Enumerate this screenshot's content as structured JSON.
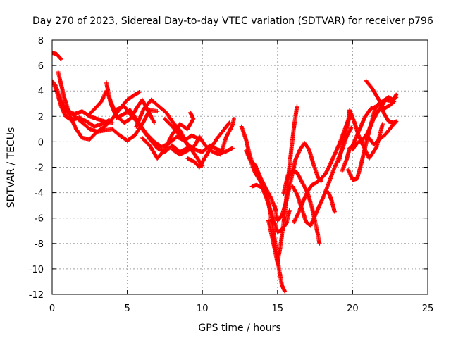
{
  "chart_data": {
    "type": "scatter",
    "title": "Day 270 of 2023, Sidereal Day-to-day VTEC variation (SDTVAR) for receiver p796",
    "xlabel": "GPS time / hours",
    "ylabel": "SDTVAR / TECUs",
    "xlim": [
      0,
      25
    ],
    "ylim": [
      -12,
      8
    ],
    "xticks": [
      0,
      5,
      10,
      15,
      20,
      25
    ],
    "yticks": [
      -12,
      -10,
      -8,
      -6,
      -4,
      -2,
      0,
      2,
      4,
      6,
      8
    ],
    "grid": true,
    "marker": "+",
    "series": [
      {
        "name": "SDTVAR",
        "color": "#ff0000",
        "tracks": [
          [
            [
              0.0,
              7.0
            ],
            [
              0.3,
              6.9
            ],
            [
              0.6,
              6.5
            ]
          ],
          [
            [
              0.0,
              4.8
            ],
            [
              0.3,
              4.0
            ],
            [
              0.6,
              2.8
            ],
            [
              0.9,
              2.0
            ],
            [
              1.3,
              1.7
            ],
            [
              1.8,
              1.9
            ],
            [
              2.3,
              1.6
            ],
            [
              2.8,
              1.2
            ],
            [
              3.3,
              1.4
            ],
            [
              3.8,
              1.7
            ]
          ],
          [
            [
              0.2,
              4.5
            ],
            [
              0.6,
              3.2
            ],
            [
              1.0,
              2.3
            ],
            [
              1.5,
              2.2
            ],
            [
              2.0,
              2.4
            ],
            [
              2.5,
              2.0
            ],
            [
              3.0,
              1.8
            ],
            [
              3.5,
              1.6
            ],
            [
              4.0,
              1.5
            ]
          ],
          [
            [
              0.4,
              5.5
            ],
            [
              0.8,
              3.5
            ],
            [
              1.2,
              2.0
            ],
            [
              1.6,
              1.0
            ],
            [
              2.0,
              0.3
            ],
            [
              2.5,
              0.2
            ],
            [
              3.0,
              0.8
            ],
            [
              3.5,
              1.2
            ],
            [
              4.0,
              1.8
            ],
            [
              4.5,
              2.6
            ],
            [
              5.0,
              3.3
            ],
            [
              5.5,
              3.7
            ],
            [
              5.8,
              3.9
            ]
          ],
          [
            [
              1.0,
              2.6
            ],
            [
              1.5,
              2.0
            ],
            [
              2.0,
              1.5
            ],
            [
              2.5,
              1.0
            ],
            [
              3.0,
              0.8
            ],
            [
              3.5,
              0.9
            ],
            [
              4.0,
              1.0
            ],
            [
              4.5,
              0.5
            ],
            [
              5.0,
              0.1
            ],
            [
              5.5,
              0.5
            ],
            [
              6.0,
              1.4
            ],
            [
              6.5,
              2.5
            ],
            [
              7.0,
              2.4
            ]
          ],
          [
            [
              2.5,
              2.2
            ],
            [
              3.0,
              2.8
            ],
            [
              3.3,
              3.2
            ],
            [
              3.6,
              4.0
            ],
            [
              3.9,
              3.2
            ],
            [
              4.3,
              2.0
            ],
            [
              4.8,
              1.5
            ],
            [
              5.2,
              1.8
            ],
            [
              5.7,
              2.8
            ],
            [
              6.0,
              3.3
            ],
            [
              6.4,
              2.4
            ],
            [
              6.8,
              1.5
            ]
          ],
          [
            [
              3.6,
              4.7
            ],
            [
              3.9,
              3.0
            ],
            [
              4.3,
              1.9
            ],
            [
              4.8,
              2.2
            ],
            [
              5.2,
              2.5
            ],
            [
              5.6,
              1.8
            ],
            [
              6.0,
              1.0
            ],
            [
              6.5,
              0.2
            ],
            [
              7.0,
              -0.5
            ],
            [
              7.5,
              -0.8
            ],
            [
              8.0,
              -0.3
            ],
            [
              8.5,
              -0.8
            ],
            [
              9.0,
              -0.5
            ]
          ],
          [
            [
              4.2,
              2.5
            ],
            [
              4.8,
              2.8
            ],
            [
              5.3,
              2.0
            ],
            [
              5.8,
              1.4
            ],
            [
              6.3,
              0.6
            ],
            [
              6.8,
              0.0
            ],
            [
              7.3,
              -0.4
            ],
            [
              7.8,
              -0.1
            ],
            [
              8.3,
              0.4
            ],
            [
              8.8,
              0.1
            ],
            [
              9.3,
              0.5
            ],
            [
              9.8,
              0.2
            ]
          ],
          [
            [
              5.6,
              1.2
            ],
            [
              6.1,
              2.6
            ],
            [
              6.6,
              3.3
            ],
            [
              7.1,
              2.8
            ],
            [
              7.6,
              2.3
            ],
            [
              8.0,
              1.6
            ],
            [
              8.5,
              0.9
            ],
            [
              9.0,
              -0.2
            ],
            [
              9.5,
              -1.0
            ],
            [
              10.0,
              -1.9
            ]
          ],
          [
            [
              6.0,
              0.3
            ],
            [
              6.5,
              -0.3
            ],
            [
              7.0,
              -1.3
            ],
            [
              7.5,
              -0.6
            ],
            [
              8.0,
              0.6
            ],
            [
              8.5,
              1.4
            ],
            [
              9.0,
              1.0
            ],
            [
              9.4,
              1.8
            ],
            [
              9.2,
              2.3
            ]
          ],
          [
            [
              7.5,
              1.8
            ],
            [
              8.0,
              1.2
            ],
            [
              8.5,
              0.5
            ],
            [
              9.0,
              -0.2
            ],
            [
              9.5,
              -0.6
            ],
            [
              10.0,
              -0.8
            ],
            [
              10.5,
              -0.3
            ],
            [
              11.0,
              -0.6
            ],
            [
              11.5,
              -0.8
            ],
            [
              12.0,
              -0.5
            ]
          ],
          [
            [
              8.0,
              -0.6
            ],
            [
              8.5,
              -1.0
            ],
            [
              9.0,
              -0.7
            ],
            [
              9.5,
              -0.3
            ],
            [
              9.8,
              0.4
            ],
            [
              10.2,
              -0.3
            ],
            [
              10.7,
              -0.8
            ],
            [
              11.2,
              -1.0
            ],
            [
              11.6,
              0.4
            ],
            [
              12.0,
              1.3
            ],
            [
              12.1,
              1.8
            ]
          ],
          [
            [
              9.0,
              -1.3
            ],
            [
              9.5,
              -1.6
            ],
            [
              9.8,
              -2.0
            ],
            [
              10.2,
              -1.2
            ],
            [
              10.6,
              -0.4
            ],
            [
              11.0,
              0.3
            ],
            [
              11.4,
              0.9
            ],
            [
              11.8,
              1.5
            ]
          ],
          [
            [
              12.6,
              1.2
            ],
            [
              12.9,
              0.2
            ],
            [
              13.1,
              -0.8
            ],
            [
              13.3,
              -1.6
            ],
            [
              13.5,
              -1.8
            ],
            [
              13.9,
              -2.9
            ],
            [
              14.2,
              -3.6
            ],
            [
              14.6,
              -4.5
            ],
            [
              14.9,
              -5.4
            ]
          ],
          [
            [
              12.9,
              -0.7
            ],
            [
              13.2,
              -1.5
            ],
            [
              13.5,
              -2.4
            ],
            [
              13.8,
              -3.0
            ],
            [
              14.1,
              -3.6
            ],
            [
              14.4,
              -4.8
            ],
            [
              14.7,
              -6.8
            ],
            [
              14.9,
              -8.4
            ],
            [
              15.1,
              -10.0
            ],
            [
              15.3,
              -11.3
            ],
            [
              15.5,
              -11.8
            ]
          ],
          [
            [
              13.3,
              -3.5
            ],
            [
              13.6,
              -3.4
            ],
            [
              14.0,
              -3.6
            ],
            [
              14.4,
              -4.9
            ],
            [
              14.7,
              -6.0
            ],
            [
              15.0,
              -7.1
            ],
            [
              15.3,
              -6.9
            ],
            [
              15.6,
              -6.4
            ],
            [
              15.8,
              -5.4
            ]
          ],
          [
            [
              14.4,
              -6.2
            ],
            [
              14.7,
              -7.8
            ],
            [
              15.0,
              -9.5
            ],
            [
              15.2,
              -8.2
            ],
            [
              15.5,
              -5.5
            ],
            [
              15.7,
              -3.0
            ],
            [
              15.9,
              -0.8
            ],
            [
              16.1,
              1.2
            ],
            [
              16.3,
              2.8
            ]
          ],
          [
            [
              14.8,
              -5.0
            ],
            [
              15.0,
              -6.2
            ],
            [
              15.3,
              -5.8
            ],
            [
              15.6,
              -4.6
            ],
            [
              15.9,
              -3.0
            ],
            [
              16.2,
              -1.4
            ],
            [
              16.5,
              -0.6
            ],
            [
              16.8,
              -0.1
            ],
            [
              17.1,
              -0.6
            ],
            [
              17.4,
              -1.8
            ],
            [
              17.7,
              -2.8
            ],
            [
              17.9,
              -3.1
            ]
          ],
          [
            [
              15.4,
              -4.1
            ],
            [
              15.7,
              -2.6
            ],
            [
              16.0,
              -2.3
            ],
            [
              16.3,
              -2.4
            ],
            [
              16.6,
              -3.1
            ],
            [
              17.0,
              -4.0
            ],
            [
              17.3,
              -5.2
            ],
            [
              17.6,
              -6.8
            ],
            [
              17.8,
              -8.0
            ]
          ],
          [
            [
              16.0,
              -3.5
            ],
            [
              16.3,
              -4.1
            ],
            [
              16.6,
              -5.2
            ],
            [
              16.9,
              -6.3
            ],
            [
              17.2,
              -6.6
            ],
            [
              17.5,
              -5.8
            ],
            [
              17.8,
              -5.0
            ],
            [
              18.1,
              -4.2
            ],
            [
              18.4,
              -3.3
            ],
            [
              18.7,
              -2.3
            ],
            [
              19.0,
              -1.5
            ],
            [
              19.3,
              -0.6
            ],
            [
              19.6,
              0.4
            ],
            [
              19.9,
              1.1
            ]
          ],
          [
            [
              16.1,
              -6.3
            ],
            [
              16.4,
              -5.6
            ],
            [
              16.7,
              -4.7
            ],
            [
              17.0,
              -3.9
            ],
            [
              17.3,
              -3.4
            ],
            [
              17.6,
              -3.2
            ],
            [
              17.9,
              -2.9
            ],
            [
              18.2,
              -2.5
            ],
            [
              18.5,
              -1.8
            ],
            [
              18.8,
              -1.0
            ],
            [
              19.1,
              -0.2
            ],
            [
              19.4,
              0.7
            ],
            [
              19.7,
              1.7
            ],
            [
              20.0,
              2.1
            ]
          ],
          [
            [
              18.4,
              -4.0
            ],
            [
              18.6,
              -4.6
            ],
            [
              18.8,
              -5.5
            ]
          ],
          [
            [
              19.1,
              -1.5
            ],
            [
              19.4,
              0.2
            ],
            [
              19.7,
              1.5
            ],
            [
              19.8,
              2.5
            ],
            [
              20.1,
              1.6
            ],
            [
              20.4,
              0.5
            ],
            [
              20.7,
              -0.3
            ],
            [
              21.1,
              -1.3
            ],
            [
              21.6,
              -0.4
            ],
            [
              22.0,
              1.4
            ]
          ],
          [
            [
              19.7,
              -2.2
            ],
            [
              20.0,
              -3.0
            ],
            [
              20.3,
              -2.9
            ],
            [
              20.6,
              -1.6
            ],
            [
              20.9,
              -0.1
            ],
            [
              21.2,
              1.3
            ],
            [
              21.5,
              2.6
            ],
            [
              21.8,
              3.1
            ],
            [
              22.1,
              2.2
            ],
            [
              22.4,
              1.6
            ],
            [
              22.7,
              1.5
            ],
            [
              22.9,
              1.6
            ]
          ],
          [
            [
              19.3,
              -2.3
            ],
            [
              19.6,
              -1.4
            ],
            [
              19.8,
              -0.5
            ],
            [
              20.0,
              -0.3
            ],
            [
              20.4,
              0.8
            ],
            [
              20.8,
              1.9
            ],
            [
              21.2,
              2.6
            ],
            [
              21.6,
              2.8
            ],
            [
              22.0,
              3.2
            ],
            [
              22.4,
              3.5
            ],
            [
              22.7,
              3.3
            ],
            [
              22.9,
              3.7
            ]
          ],
          [
            [
              20.0,
              -0.6
            ],
            [
              20.3,
              -0.1
            ],
            [
              20.7,
              0.2
            ],
            [
              21.0,
              0.7
            ],
            [
              21.4,
              1.8
            ],
            [
              21.8,
              2.6
            ],
            [
              22.2,
              3.3
            ],
            [
              22.6,
              3.2
            ],
            [
              22.9,
              3.5
            ]
          ],
          [
            [
              20.9,
              4.8
            ],
            [
              21.3,
              4.2
            ],
            [
              21.7,
              3.4
            ],
            [
              22.1,
              2.6
            ],
            [
              22.5,
              2.9
            ],
            [
              22.8,
              3.2
            ]
          ],
          [
            [
              21.1,
              0.3
            ],
            [
              21.4,
              -0.2
            ],
            [
              21.8,
              0.2
            ],
            [
              22.2,
              0.6
            ],
            [
              22.6,
              1.2
            ],
            [
              22.9,
              1.6
            ]
          ]
        ]
      }
    ]
  }
}
